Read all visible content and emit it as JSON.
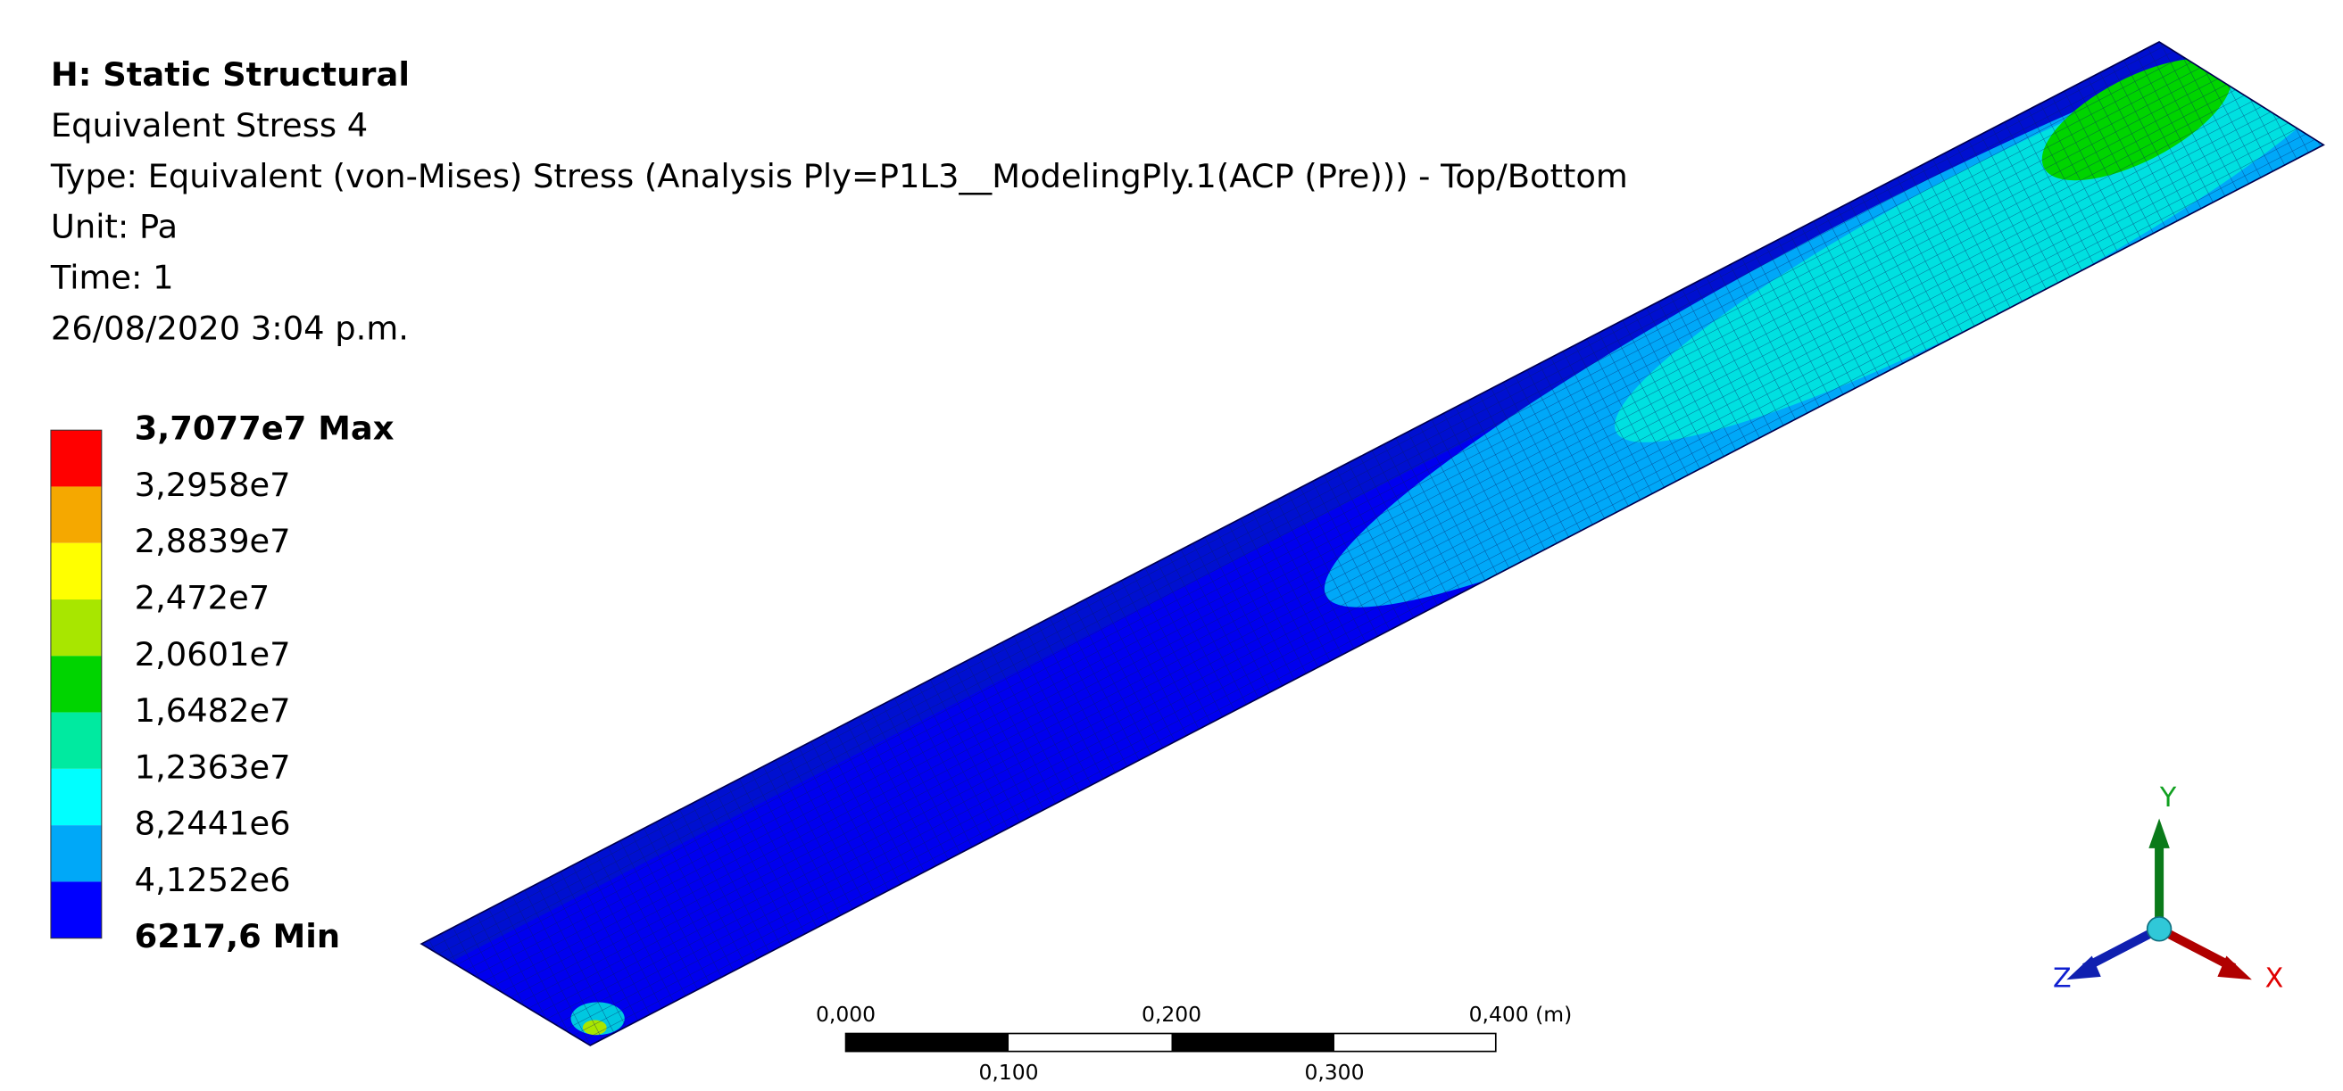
{
  "header": {
    "title": "H: Static Structural",
    "lines": [
      "Equivalent Stress 4",
      "Type: Equivalent (von-Mises) Stress (Analysis Ply=P1L3__ModelingPly.1(ACP (Pre))) - Top/Bottom",
      "Unit: Pa",
      "Time: 1",
      "26/08/2020 3:04 p.m."
    ]
  },
  "legend": {
    "labels": [
      "3,7077e7 Max",
      "3,2958e7",
      "2,8839e7",
      "2,472e7",
      "2,0601e7",
      "1,6482e7",
      "1,2363e7",
      "8,2441e6",
      "4,1252e6",
      "6217,6 Min"
    ],
    "colors": [
      "#ff0000",
      "#f5a800",
      "#ffff00",
      "#a8e600",
      "#00d400",
      "#00eaa0",
      "#00ffff",
      "#00a8f8",
      "#0000ff"
    ]
  },
  "scale_bar": {
    "top_labels": [
      "0,000",
      "0,200",
      "0,400 (m)"
    ],
    "bottom_labels": [
      "0,100",
      "0,300"
    ]
  },
  "triad": {
    "x": "X",
    "y": "Y",
    "z": "Z"
  }
}
